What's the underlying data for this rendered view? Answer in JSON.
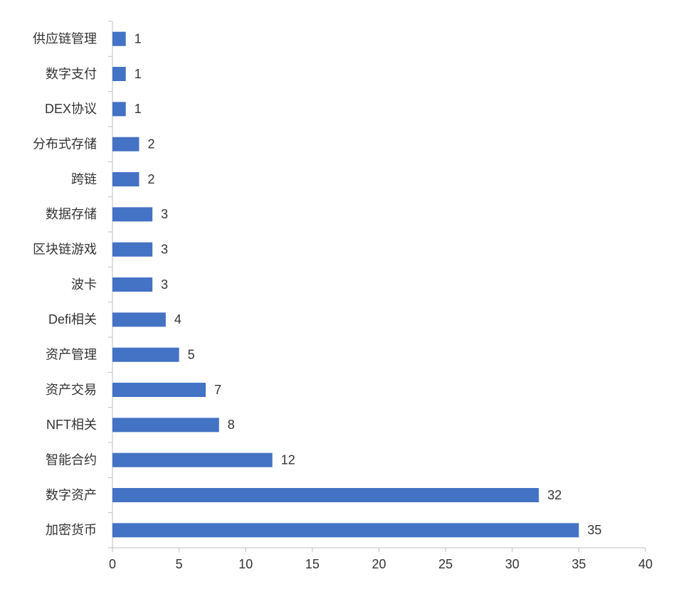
{
  "chart_data": {
    "type": "barh",
    "categories": [
      "供应链管理",
      "数字支付",
      "DEX协议",
      "分布式存储",
      "跨链",
      "数据存储",
      "区块链游戏",
      "波卡",
      "Defi相关",
      "资产管理",
      "资产交易",
      "NFT相关",
      "智能合约",
      "数字资产",
      "加密货币"
    ],
    "values": [
      1,
      1,
      1,
      2,
      2,
      3,
      3,
      3,
      4,
      5,
      7,
      8,
      12,
      32,
      35
    ],
    "color": "#4472c4",
    "xlim": [
      0,
      40
    ],
    "xticks": [
      0,
      5,
      10,
      15,
      20,
      25,
      30,
      35,
      40
    ]
  }
}
